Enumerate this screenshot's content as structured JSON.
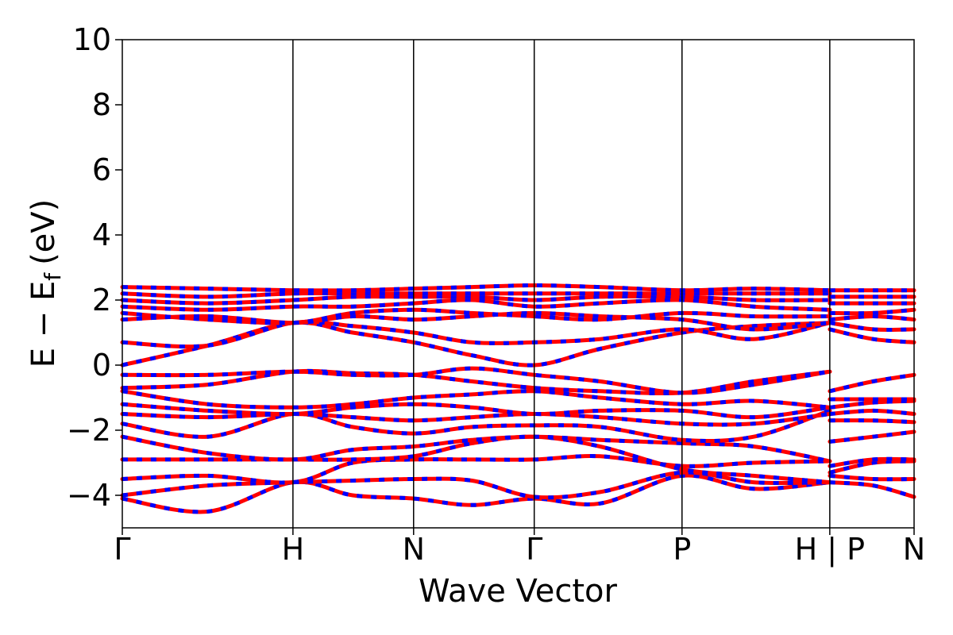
{
  "chart_data": {
    "type": "line",
    "title": "",
    "xlabel": "Wave Vector",
    "ylabel_main": "E − E",
    "ylabel_sub": "f",
    "ylabel_unit": "(eV)",
    "ylim": [
      -5,
      10
    ],
    "yticks": [
      -4,
      -2,
      0,
      2,
      4,
      6,
      8,
      10
    ],
    "ytick_labels": [
      "−4",
      "−2",
      "0",
      "2",
      "4",
      "6",
      "8",
      "10"
    ],
    "xlim": [
      0,
      4.64
    ],
    "kpath_labels": [
      "Γ",
      "H",
      "N",
      "Γ",
      "P",
      "H | P",
      "N"
    ],
    "kpath_positions": [
      0,
      1.0,
      1.707,
      2.414,
      3.28,
      4.146,
      4.64
    ],
    "grid": false,
    "legend": "none",
    "colors": {
      "spin_up": "#ff0000",
      "spin_down": "#0000ff"
    },
    "series": [
      {
        "x": [
          0,
          0.5,
          1.0,
          1.35,
          1.707,
          2.05,
          2.414,
          2.8,
          3.28,
          3.7,
          4.146
        ],
        "y": [
          -4.1,
          -4.5,
          -3.6,
          -4.0,
          -4.1,
          -4.3,
          -4.1,
          -4.25,
          -3.4,
          -3.8,
          -3.6
        ]
      },
      {
        "x": [
          0,
          0.5,
          1.0,
          1.35,
          1.707,
          2.05,
          2.414,
          2.8,
          3.28,
          3.7,
          4.146
        ],
        "y": [
          -4.0,
          -3.7,
          -3.6,
          -3.55,
          -3.5,
          -3.55,
          -4.05,
          -3.9,
          -3.3,
          -3.6,
          -3.6
        ]
      },
      {
        "x": [
          0,
          0.5,
          1.0,
          1.35,
          1.707,
          2.05,
          2.414,
          2.8,
          3.28,
          3.7,
          4.146
        ],
        "y": [
          -3.5,
          -3.4,
          -3.6,
          -3.0,
          -2.9,
          -2.9,
          -2.9,
          -2.8,
          -3.1,
          -3.0,
          -2.95
        ]
      },
      {
        "x": [
          0,
          0.5,
          1.0,
          1.35,
          1.707,
          2.05,
          2.414,
          2.8,
          3.28,
          3.7,
          4.146
        ],
        "y": [
          -2.9,
          -2.9,
          -2.9,
          -2.9,
          -2.8,
          -2.4,
          -2.2,
          -2.5,
          -3.2,
          -3.4,
          -3.6
        ]
      },
      {
        "x": [
          0,
          0.5,
          1.0,
          1.35,
          1.707,
          2.05,
          2.414,
          2.8,
          3.28,
          3.7,
          4.146
        ],
        "y": [
          -2.2,
          -2.7,
          -2.9,
          -2.6,
          -2.5,
          -2.3,
          -2.2,
          -2.3,
          -2.4,
          -2.5,
          -2.95
        ]
      },
      {
        "x": [
          0,
          0.5,
          1.0,
          1.35,
          1.707,
          2.05,
          2.414,
          2.8,
          3.28,
          3.7,
          4.146
        ],
        "y": [
          -1.8,
          -2.2,
          -1.5,
          -1.9,
          -2.1,
          -1.9,
          -1.85,
          -1.9,
          -2.3,
          -2.2,
          -1.4
        ]
      },
      {
        "x": [
          0,
          0.5,
          1.0,
          1.35,
          1.707,
          2.05,
          2.414,
          2.8,
          3.28,
          3.7,
          4.146
        ],
        "y": [
          -1.5,
          -1.6,
          -1.5,
          -1.6,
          -1.7,
          -1.6,
          -1.5,
          -1.6,
          -1.8,
          -1.8,
          -1.5
        ]
      },
      {
        "x": [
          0,
          0.5,
          1.0,
          1.35,
          1.707,
          2.05,
          2.414,
          2.8,
          3.28,
          3.7,
          4.146
        ],
        "y": [
          -1.2,
          -1.4,
          -1.5,
          -1.3,
          -1.2,
          -1.3,
          -1.5,
          -1.4,
          -1.4,
          -1.6,
          -1.3
        ]
      },
      {
        "x": [
          0,
          0.5,
          1.0,
          1.35,
          1.707,
          2.05,
          2.414,
          2.8,
          3.28,
          3.7,
          4.146
        ],
        "y": [
          -0.8,
          -1.2,
          -1.3,
          -1.2,
          -1.0,
          -0.9,
          -0.8,
          -1.0,
          -1.2,
          -1.1,
          -1.3
        ]
      },
      {
        "x": [
          0,
          0.5,
          1.0,
          1.35,
          1.707,
          2.05,
          2.414,
          2.8,
          3.28,
          3.7,
          4.146
        ],
        "y": [
          -0.7,
          -0.6,
          -0.2,
          -0.25,
          -0.3,
          -0.5,
          -0.7,
          -0.8,
          -0.85,
          -0.5,
          -0.2
        ]
      },
      {
        "x": [
          0,
          0.5,
          1.0,
          1.35,
          1.707,
          2.05,
          2.414,
          2.8,
          3.28,
          3.7,
          4.146
        ],
        "y": [
          -0.3,
          -0.3,
          -0.2,
          -0.3,
          -0.3,
          -0.1,
          -0.3,
          -0.5,
          -0.85,
          -0.6,
          -0.2
        ]
      },
      {
        "x": [
          0,
          0.5,
          1.0,
          1.35,
          1.707,
          2.05,
          2.414,
          2.8,
          3.28,
          3.7,
          4.146
        ],
        "y": [
          0.0,
          0.6,
          1.3,
          1.0,
          0.7,
          0.3,
          0.0,
          0.5,
          1.0,
          1.2,
          1.3
        ]
      },
      {
        "x": [
          0,
          0.5,
          1.0,
          1.35,
          1.707,
          2.05,
          2.414,
          2.8,
          3.28,
          3.7,
          4.146
        ],
        "y": [
          0.7,
          0.6,
          1.3,
          1.2,
          1.0,
          0.7,
          0.7,
          0.8,
          1.1,
          0.8,
          1.3
        ]
      },
      {
        "x": [
          0,
          0.5,
          1.0,
          1.35,
          1.707,
          2.05,
          2.414,
          2.8,
          3.28,
          3.7,
          4.146
        ],
        "y": [
          1.4,
          1.5,
          1.3,
          1.5,
          1.4,
          1.5,
          1.6,
          1.5,
          1.4,
          1.1,
          1.3
        ]
      },
      {
        "x": [
          0,
          0.5,
          1.0,
          1.35,
          1.707,
          2.05,
          2.414,
          2.8,
          3.28,
          3.7,
          4.146
        ],
        "y": [
          1.6,
          1.4,
          1.3,
          1.6,
          1.7,
          1.6,
          1.5,
          1.4,
          1.6,
          1.5,
          1.5
        ]
      },
      {
        "x": [
          0,
          0.5,
          1.0,
          1.35,
          1.707,
          2.05,
          2.414,
          2.8,
          3.28,
          3.7,
          4.146
        ],
        "y": [
          1.8,
          1.7,
          1.8,
          1.8,
          1.9,
          2.0,
          1.8,
          1.9,
          2.0,
          1.8,
          1.7
        ]
      },
      {
        "x": [
          0,
          0.5,
          1.0,
          1.35,
          1.707,
          2.05,
          2.414,
          2.8,
          3.28,
          3.7,
          4.146
        ],
        "y": [
          2.0,
          1.9,
          2.0,
          2.1,
          2.1,
          2.1,
          2.0,
          2.1,
          2.1,
          2.0,
          2.0
        ]
      },
      {
        "x": [
          0,
          0.5,
          1.0,
          1.35,
          1.707,
          2.05,
          2.414,
          2.8,
          3.28,
          3.7,
          4.146
        ],
        "y": [
          2.2,
          2.1,
          2.2,
          2.2,
          2.2,
          2.2,
          2.2,
          2.2,
          2.2,
          2.2,
          2.2
        ]
      },
      {
        "x": [
          0,
          0.5,
          1.0,
          1.35,
          1.707,
          2.05,
          2.414,
          2.8,
          3.28,
          3.7,
          4.146
        ],
        "y": [
          2.4,
          2.35,
          2.3,
          2.3,
          2.35,
          2.4,
          2.45,
          2.4,
          2.3,
          2.35,
          2.3
        ]
      },
      {
        "x": [
          4.146,
          4.4,
          4.64
        ],
        "y": [
          -3.6,
          -3.7,
          -4.05
        ]
      },
      {
        "x": [
          4.146,
          4.4,
          4.64
        ],
        "y": [
          -3.4,
          -3.5,
          -3.5
        ]
      },
      {
        "x": [
          4.146,
          4.4,
          4.64
        ],
        "y": [
          -3.3,
          -3.0,
          -2.95
        ]
      },
      {
        "x": [
          4.146,
          4.4,
          4.64
        ],
        "y": [
          -3.1,
          -2.9,
          -2.9
        ]
      },
      {
        "x": [
          4.146,
          4.4,
          4.64
        ],
        "y": [
          -2.35,
          -2.2,
          -2.05
        ]
      },
      {
        "x": [
          4.146,
          4.4,
          4.64
        ],
        "y": [
          -1.7,
          -1.7,
          -1.75
        ]
      },
      {
        "x": [
          4.146,
          4.4,
          4.64
        ],
        "y": [
          -1.5,
          -1.4,
          -1.5
        ]
      },
      {
        "x": [
          4.146,
          4.4,
          4.64
        ],
        "y": [
          -1.3,
          -1.15,
          -1.1
        ]
      },
      {
        "x": [
          4.146,
          4.4,
          4.64
        ],
        "y": [
          -1.05,
          -1.05,
          -1.05
        ]
      },
      {
        "x": [
          4.146,
          4.4,
          4.64
        ],
        "y": [
          -0.8,
          -0.5,
          -0.3
        ]
      },
      {
        "x": [
          4.146,
          4.4,
          4.64
        ],
        "y": [
          1.1,
          0.8,
          0.7
        ]
      },
      {
        "x": [
          4.146,
          4.4,
          4.64
        ],
        "y": [
          1.3,
          1.1,
          1.1
        ]
      },
      {
        "x": [
          4.146,
          4.4,
          4.64
        ],
        "y": [
          1.4,
          1.5,
          1.4
        ]
      },
      {
        "x": [
          4.146,
          4.4,
          4.64
        ],
        "y": [
          1.6,
          1.6,
          1.7
        ]
      },
      {
        "x": [
          4.146,
          4.4,
          4.64
        ],
        "y": [
          1.9,
          1.9,
          1.9
        ]
      },
      {
        "x": [
          4.146,
          4.4,
          4.64
        ],
        "y": [
          2.1,
          2.1,
          2.1
        ]
      },
      {
        "x": [
          4.146,
          4.4,
          4.64
        ],
        "y": [
          2.3,
          2.3,
          2.3
        ]
      }
    ]
  }
}
